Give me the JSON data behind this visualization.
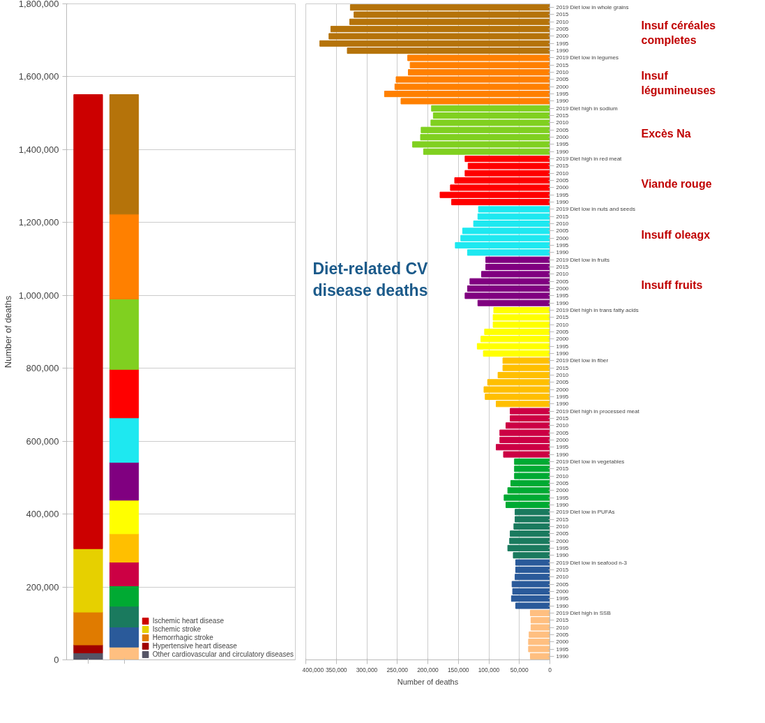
{
  "chart_data": [
    {
      "type": "bar",
      "stacked": true,
      "categories": [
        null,
        null
      ],
      "ylabel": "Number of deaths",
      "ylim": [
        0,
        1800000
      ],
      "yticks": [
        {
          "value": 0,
          "label": "0"
        },
        {
          "value": 200000,
          "label": "200,000"
        },
        {
          "value": 400000,
          "label": "400,000"
        },
        {
          "value": 600000,
          "label": "600,000"
        },
        {
          "value": 800000,
          "label": "800,000"
        },
        {
          "value": 1000000,
          "label": "1,000,000"
        },
        {
          "value": 1200000,
          "label": "1,200,000"
        },
        {
          "value": 1400000,
          "label": "1,400,000"
        },
        {
          "value": 1600000,
          "label": "1,600,000"
        },
        {
          "value": 1800000,
          "label": "1,800,000"
        }
      ],
      "grid": "y",
      "legend": "bottom right",
      "series": [
        {
          "name": "Other cardiovascular and circulatory diseases",
          "color": "#555566",
          "values": [
            19000,
            null
          ]
        },
        {
          "name": "Hypertensive heart disease",
          "color": "#a00000",
          "values": [
            22000,
            null
          ]
        },
        {
          "name": "Hemorrhagic stroke",
          "color": "#e07b00",
          "values": [
            90000,
            null
          ]
        },
        {
          "name": "Ischemic stroke",
          "color": "#e6d000",
          "values": [
            174000,
            null
          ]
        },
        {
          "name": "Ischemic heart disease",
          "color": "#cc0000",
          "values": [
            1246000,
            null
          ]
        },
        {
          "color": "#ffbf80",
          "values": [
            null,
            35000
          ]
        },
        {
          "color": "#2a5a9a",
          "values": [
            null,
            55000
          ]
        },
        {
          "color": "#1a7a5e",
          "values": [
            null,
            57000
          ]
        },
        {
          "color": "#00aa33",
          "values": [
            null,
            56000
          ]
        },
        {
          "color": "#cc0044",
          "values": [
            null,
            65000
          ]
        },
        {
          "color": "#ffbf00",
          "values": [
            null,
            78000
          ]
        },
        {
          "color": "#ffff00",
          "values": [
            null,
            92000
          ]
        },
        {
          "color": "#800080",
          "values": [
            null,
            104000
          ]
        },
        {
          "color": "#1ee8f0",
          "values": [
            null,
            122000
          ]
        },
        {
          "color": "#ff0000",
          "values": [
            null,
            133000
          ]
        },
        {
          "color": "#80d020",
          "values": [
            null,
            193000
          ]
        },
        {
          "color": "#ff8000",
          "values": [
            null,
            233000
          ]
        },
        {
          "color": "#b5730a",
          "values": [
            null,
            328000
          ]
        }
      ]
    },
    {
      "type": "bar",
      "orientation": "horizontal",
      "xlabel": "Number of deaths",
      "xlim": [
        400000,
        0
      ],
      "xticks": [
        {
          "value": 400000,
          "label": "400,000"
        },
        {
          "value": 350000,
          "label": "350,000"
        },
        {
          "value": 300000,
          "label": "300,000"
        },
        {
          "value": 250000,
          "label": "250,000"
        },
        {
          "value": 200000,
          "label": "200,000"
        },
        {
          "value": 150000,
          "label": "150,000"
        },
        {
          "value": 100000,
          "label": "100,000"
        },
        {
          "value": 50000,
          "label": "50,000"
        },
        {
          "value": 0,
          "label": "0"
        }
      ],
      "grid": "x",
      "annotations": [
        "Diet-related CV disease deaths",
        "Insuf céréales completes",
        "Insuf légumineuses",
        "Excès Na",
        "Viande rouge",
        "Insuff oleagx",
        "Insuff fruits"
      ],
      "categories": [
        "2019 Diet low in whole grains",
        "2015",
        "2010",
        "2005",
        "2000",
        "1995",
        "1990",
        "2019 Diet low in legumes",
        "2015",
        "2010",
        "2005",
        "2000",
        "1995",
        "1990",
        "2019 Diet high in sodium",
        "2015",
        "2010",
        "2005",
        "2000",
        "1995",
        "1990",
        "2019 Diet high in red meat",
        "2015",
        "2010",
        "2005",
        "2000",
        "1995",
        "1990",
        "2019 Diet low in nuts and seeds",
        "2015",
        "2010",
        "2005",
        "2000",
        "1995",
        "1990",
        "2019 Diet low in fruits",
        "2015",
        "2010",
        "2005",
        "2000",
        "1995",
        "1990",
        "2019 Diet high in trans fatty acids",
        "2015",
        "2010",
        "2005",
        "2000",
        "1995",
        "1990",
        "2019 Diet low in fiber",
        "2015",
        "2010",
        "2005",
        "2000",
        "1995",
        "1990",
        "2019 Diet high in processed meat",
        "2015",
        "2010",
        "2005",
        "2000",
        "1995",
        "1990",
        "2019 Diet low in vegetables",
        "2015",
        "2010",
        "2005",
        "2000",
        "1995",
        "1990",
        "2019 Diet low in PUFAs",
        "2015",
        "2010",
        "2005",
        "2000",
        "1995",
        "1990",
        "2019 Diet low in seafood n-3",
        "2015",
        "2010",
        "2005",
        "2000",
        "1995",
        "1990",
        "2019 Diet high in SSB",
        "2015",
        "2010",
        "2005",
        "2000",
        "1995",
        "1990"
      ],
      "values": [
        327000,
        321000,
        328000,
        359000,
        362000,
        377000,
        332000,
        233000,
        229000,
        232000,
        252000,
        254000,
        271000,
        244000,
        194000,
        191000,
        195000,
        211000,
        212000,
        225000,
        207000,
        139000,
        134000,
        139000,
        156000,
        163000,
        180000,
        161000,
        117000,
        118000,
        125000,
        143000,
        146000,
        155000,
        135000,
        105000,
        105000,
        112000,
        131000,
        135000,
        139000,
        118000,
        92000,
        93000,
        93000,
        107000,
        113000,
        119000,
        109000,
        77000,
        77000,
        85000,
        102000,
        108000,
        106000,
        88000,
        65000,
        65000,
        72000,
        82000,
        82000,
        88000,
        76000,
        58000,
        58000,
        58000,
        64000,
        69000,
        75000,
        72000,
        57000,
        57000,
        59000,
        65000,
        66000,
        69000,
        60000,
        56000,
        56000,
        57000,
        62000,
        61000,
        63000,
        56000,
        32000,
        31000,
        31000,
        34000,
        35000,
        35000,
        32000
      ],
      "colors": [
        "#b5730a",
        "#b5730a",
        "#b5730a",
        "#b5730a",
        "#b5730a",
        "#b5730a",
        "#b5730a",
        "#ff8000",
        "#ff8000",
        "#ff8000",
        "#ff8000",
        "#ff8000",
        "#ff8000",
        "#ff8000",
        "#80d020",
        "#80d020",
        "#80d020",
        "#80d020",
        "#80d020",
        "#80d020",
        "#80d020",
        "#ff0000",
        "#ff0000",
        "#ff0000",
        "#ff0000",
        "#ff0000",
        "#ff0000",
        "#ff0000",
        "#1ee8f0",
        "#1ee8f0",
        "#1ee8f0",
        "#1ee8f0",
        "#1ee8f0",
        "#1ee8f0",
        "#1ee8f0",
        "#800080",
        "#800080",
        "#800080",
        "#800080",
        "#800080",
        "#800080",
        "#800080",
        "#ffff00",
        "#ffff00",
        "#ffff00",
        "#ffff00",
        "#ffff00",
        "#ffff00",
        "#ffff00",
        "#ffbf00",
        "#ffbf00",
        "#ffbf00",
        "#ffbf00",
        "#ffbf00",
        "#ffbf00",
        "#ffbf00",
        "#cc0044",
        "#cc0044",
        "#cc0044",
        "#cc0044",
        "#cc0044",
        "#cc0044",
        "#cc0044",
        "#00aa33",
        "#00aa33",
        "#00aa33",
        "#00aa33",
        "#00aa33",
        "#00aa33",
        "#00aa33",
        "#1a7a5e",
        "#1a7a5e",
        "#1a7a5e",
        "#1a7a5e",
        "#1a7a5e",
        "#1a7a5e",
        "#1a7a5e",
        "#2a5a9a",
        "#2a5a9a",
        "#2a5a9a",
        "#2a5a9a",
        "#2a5a9a",
        "#2a5a9a",
        "#2a5a9a",
        "#ffbf80",
        "#ffbf80",
        "#ffbf80",
        "#ffbf80",
        "#ffbf80",
        "#ffbf80",
        "#ffbf80"
      ]
    }
  ]
}
